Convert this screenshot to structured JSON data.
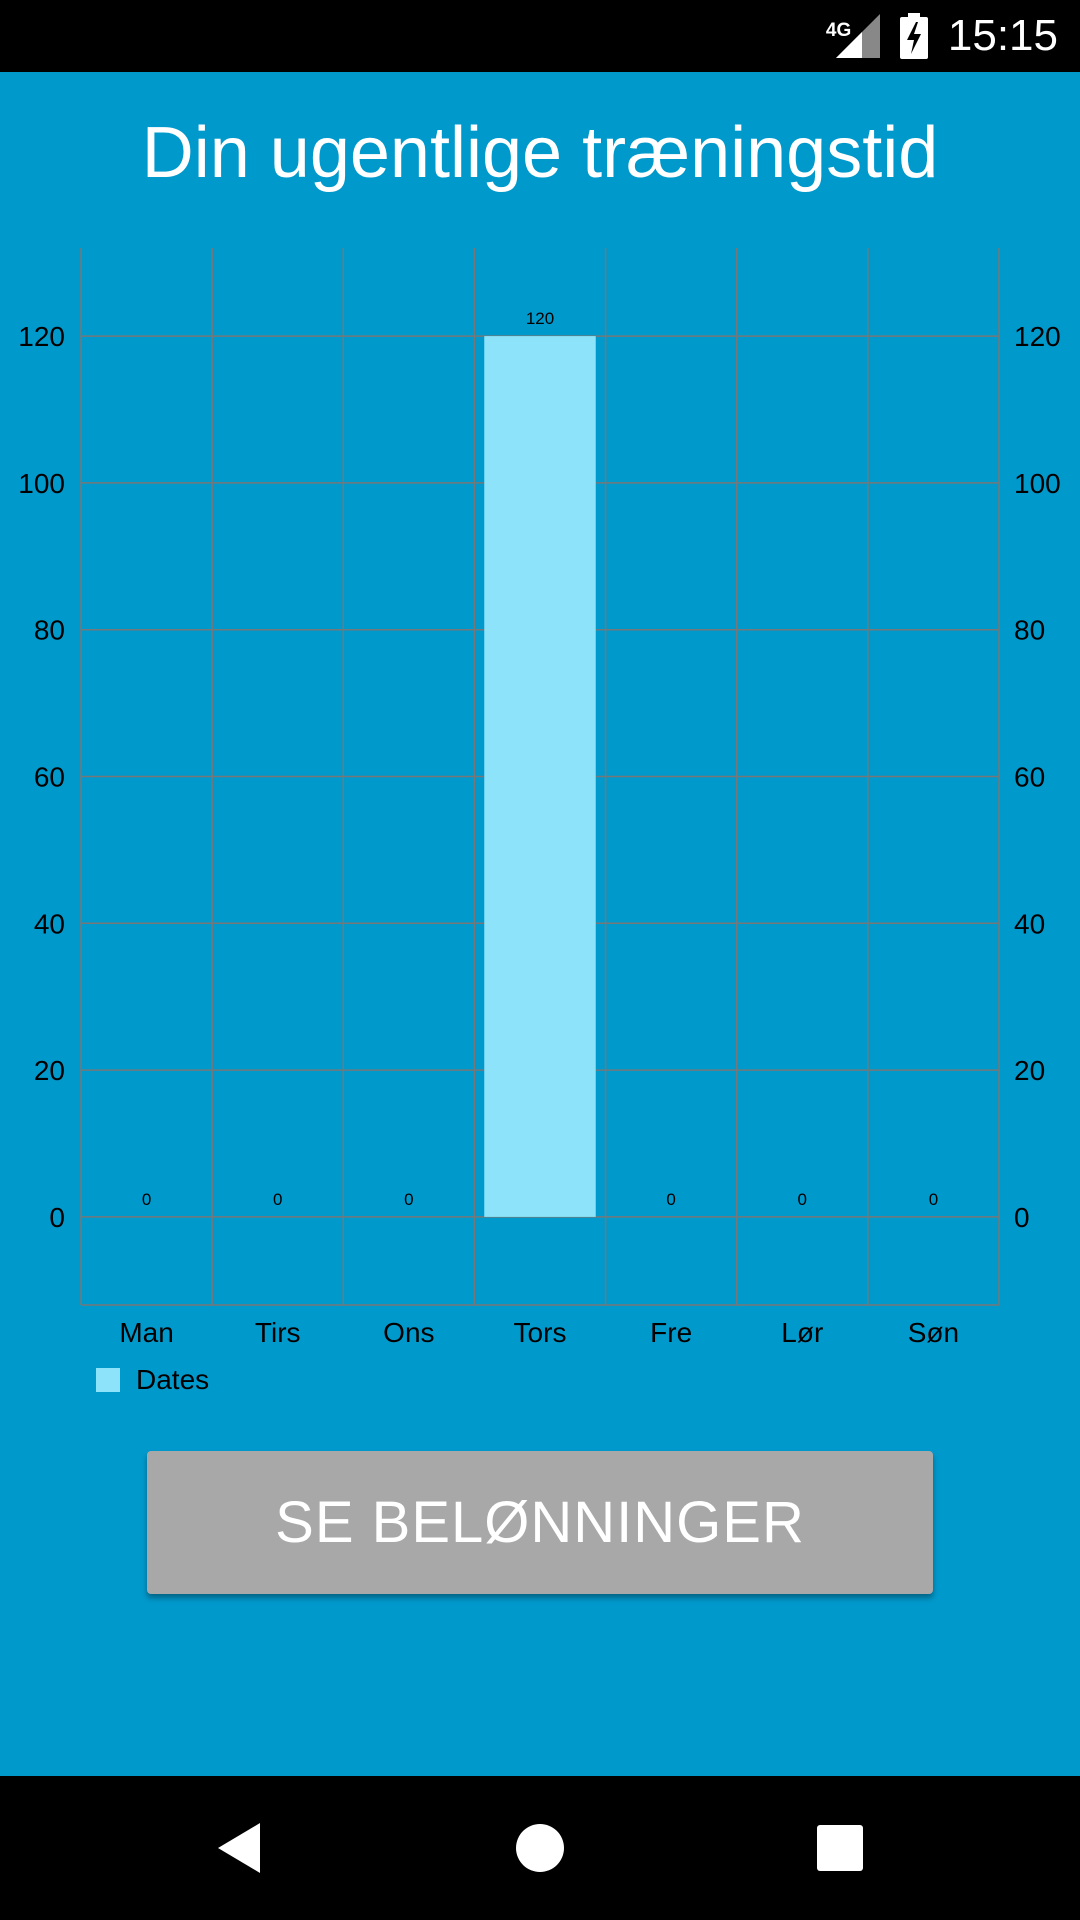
{
  "status_bar": {
    "time": "15:15",
    "network_type": "4G",
    "signal_icon": "cell-signal-icon",
    "battery_icon": "battery-charging-icon"
  },
  "app": {
    "title": "Din ugentlige træningstid",
    "button_label": "SE BELØNNINGER"
  },
  "colors": {
    "background": "#0099cc",
    "bar": "#8de4fa",
    "button": "#a8a8a8",
    "grid": "#777777"
  },
  "chart_data": {
    "type": "bar",
    "categories": [
      "Man",
      "Tirs",
      "Ons",
      "Tors",
      "Fre",
      "Lør",
      "Søn"
    ],
    "series": [
      {
        "name": "Dates",
        "values": [
          0,
          0,
          0,
          120,
          0,
          0,
          0
        ]
      }
    ],
    "value_labels": [
      "0",
      "0",
      "0",
      "120",
      "0",
      "0",
      "0"
    ],
    "title": "",
    "xlabel": "",
    "ylabel": "",
    "ylim": [
      -12,
      132
    ],
    "yticks": [
      0,
      20,
      40,
      60,
      80,
      100,
      120
    ],
    "ytick_labels": [
      "0",
      "20",
      "40",
      "60",
      "80",
      "100",
      "120"
    ],
    "secondary_axis": true,
    "grid": true,
    "legend": "bottom-left"
  },
  "nav_bar": {
    "back_icon": "back-triangle-icon",
    "home_icon": "home-circle-icon",
    "recents_icon": "recents-square-icon"
  }
}
